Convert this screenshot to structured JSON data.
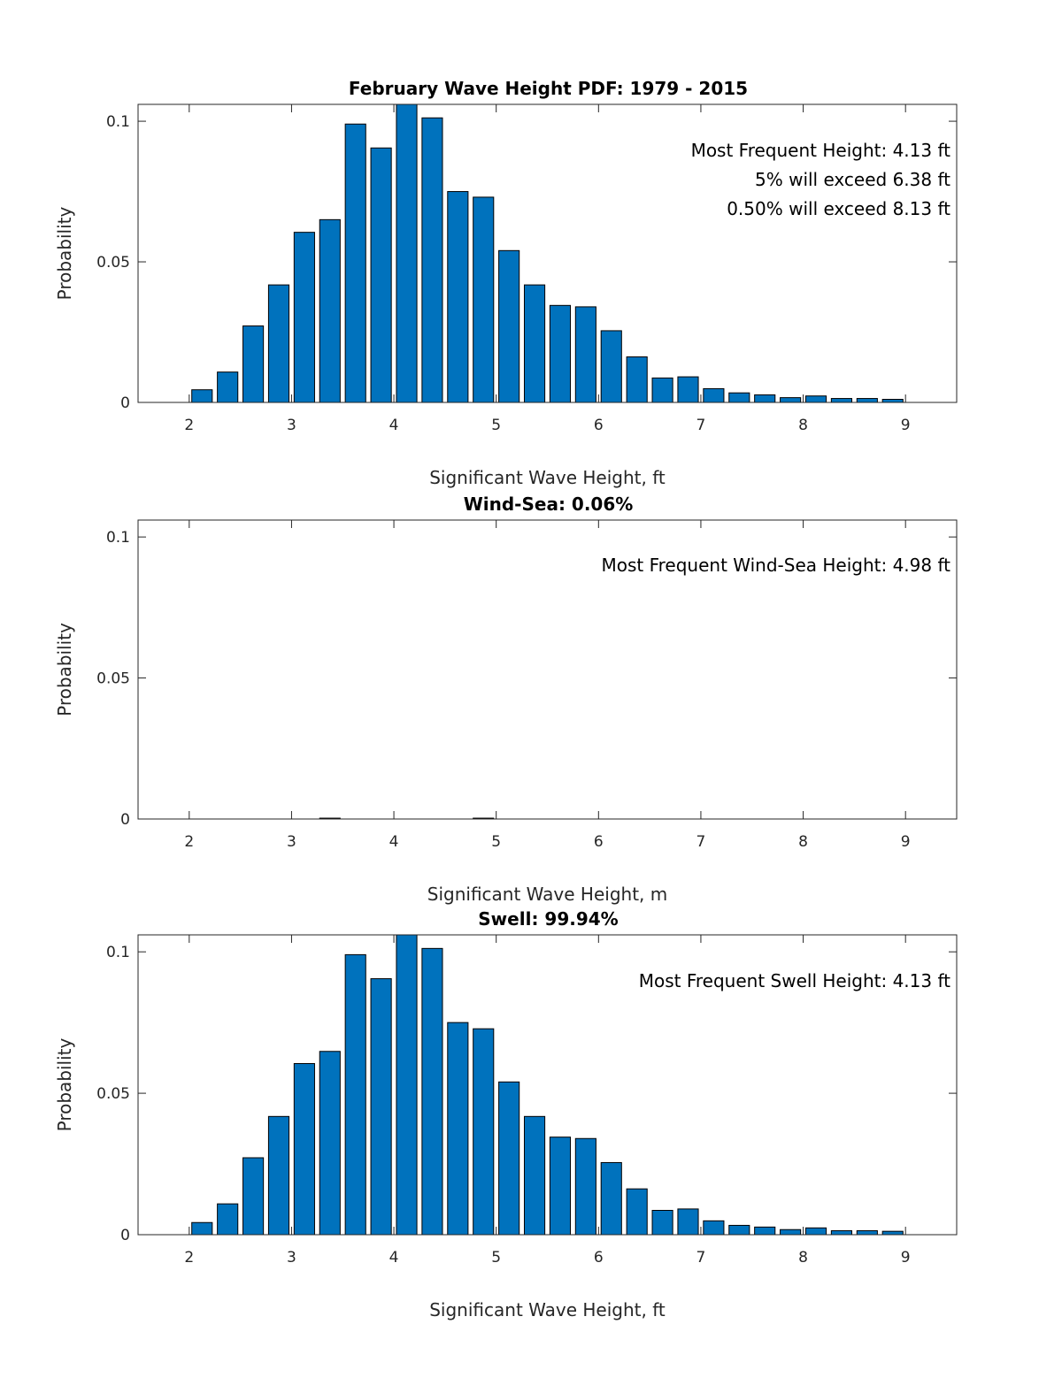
{
  "chart_data": [
    {
      "type": "bar",
      "title": "February Wave Height PDF: 1979 - 2015",
      "xlabel": "Significant Wave Height, ft",
      "ylabel": "Probability",
      "xlim": [
        1.5,
        9.5
      ],
      "ylim": [
        0,
        0.106
      ],
      "xticks": [
        "2",
        "3",
        "4",
        "5",
        "6",
        "7",
        "8",
        "9"
      ],
      "yticks": [
        "0",
        "0.05",
        "0.1"
      ],
      "x": [
        2.125,
        2.375,
        2.625,
        2.875,
        3.125,
        3.375,
        3.625,
        3.875,
        4.125,
        4.375,
        4.625,
        4.875,
        5.125,
        5.375,
        5.625,
        5.875,
        6.125,
        6.375,
        6.625,
        6.875,
        7.125,
        7.375,
        7.625,
        7.875,
        8.125,
        8.375,
        8.625,
        8.875
      ],
      "values": [
        0.0045,
        0.0108,
        0.0272,
        0.0418,
        0.0605,
        0.065,
        0.099,
        0.0905,
        0.106,
        0.1012,
        0.075,
        0.073,
        0.054,
        0.0418,
        0.0345,
        0.034,
        0.0255,
        0.0162,
        0.0087,
        0.0091,
        0.0049,
        0.0034,
        0.0027,
        0.0017,
        0.0023,
        0.0014,
        0.0014,
        0.0011
      ],
      "annotations": [
        "Most Frequent Height: 4.13 ft",
        "5% will exceed 6.38 ft",
        "0.50% will exceed 8.13 ft"
      ]
    },
    {
      "type": "bar",
      "title": "Wind-Sea: 0.06%",
      "xlabel": "Significant Wave Height, m",
      "ylabel": "Probability",
      "xlim": [
        1.5,
        9.5
      ],
      "ylim": [
        0,
        0.106
      ],
      "xticks": [
        "2",
        "3",
        "4",
        "5",
        "6",
        "7",
        "8",
        "9"
      ],
      "yticks": [
        "0",
        "0.05",
        "0.1"
      ],
      "x": [
        3.375,
        4.875
      ],
      "values": [
        0.0003,
        0.0003
      ],
      "annotations": [
        "Most Frequent Wind-Sea Height: 4.98 ft"
      ]
    },
    {
      "type": "bar",
      "title": "Swell: 99.94%",
      "xlabel": "Significant Wave Height, ft",
      "ylabel": "Probability",
      "xlim": [
        1.5,
        9.5
      ],
      "ylim": [
        0,
        0.106
      ],
      "xticks": [
        "2",
        "3",
        "4",
        "5",
        "6",
        "7",
        "8",
        "9"
      ],
      "yticks": [
        "0",
        "0.05",
        "0.1"
      ],
      "x": [
        2.125,
        2.375,
        2.625,
        2.875,
        3.125,
        3.375,
        3.625,
        3.875,
        4.125,
        4.375,
        4.625,
        4.875,
        5.125,
        5.375,
        5.625,
        5.875,
        6.125,
        6.375,
        6.625,
        6.875,
        7.125,
        7.375,
        7.625,
        7.875,
        8.125,
        8.375,
        8.625,
        8.875
      ],
      "values": [
        0.0043,
        0.0109,
        0.0272,
        0.0418,
        0.0605,
        0.0648,
        0.099,
        0.0905,
        0.106,
        0.1012,
        0.075,
        0.0728,
        0.054,
        0.0418,
        0.0345,
        0.034,
        0.0255,
        0.0162,
        0.0086,
        0.0091,
        0.0049,
        0.0033,
        0.0027,
        0.0018,
        0.0024,
        0.0014,
        0.0014,
        0.0012
      ],
      "annotations": [
        "Most Frequent Swell Height: 4.13 ft"
      ]
    }
  ]
}
